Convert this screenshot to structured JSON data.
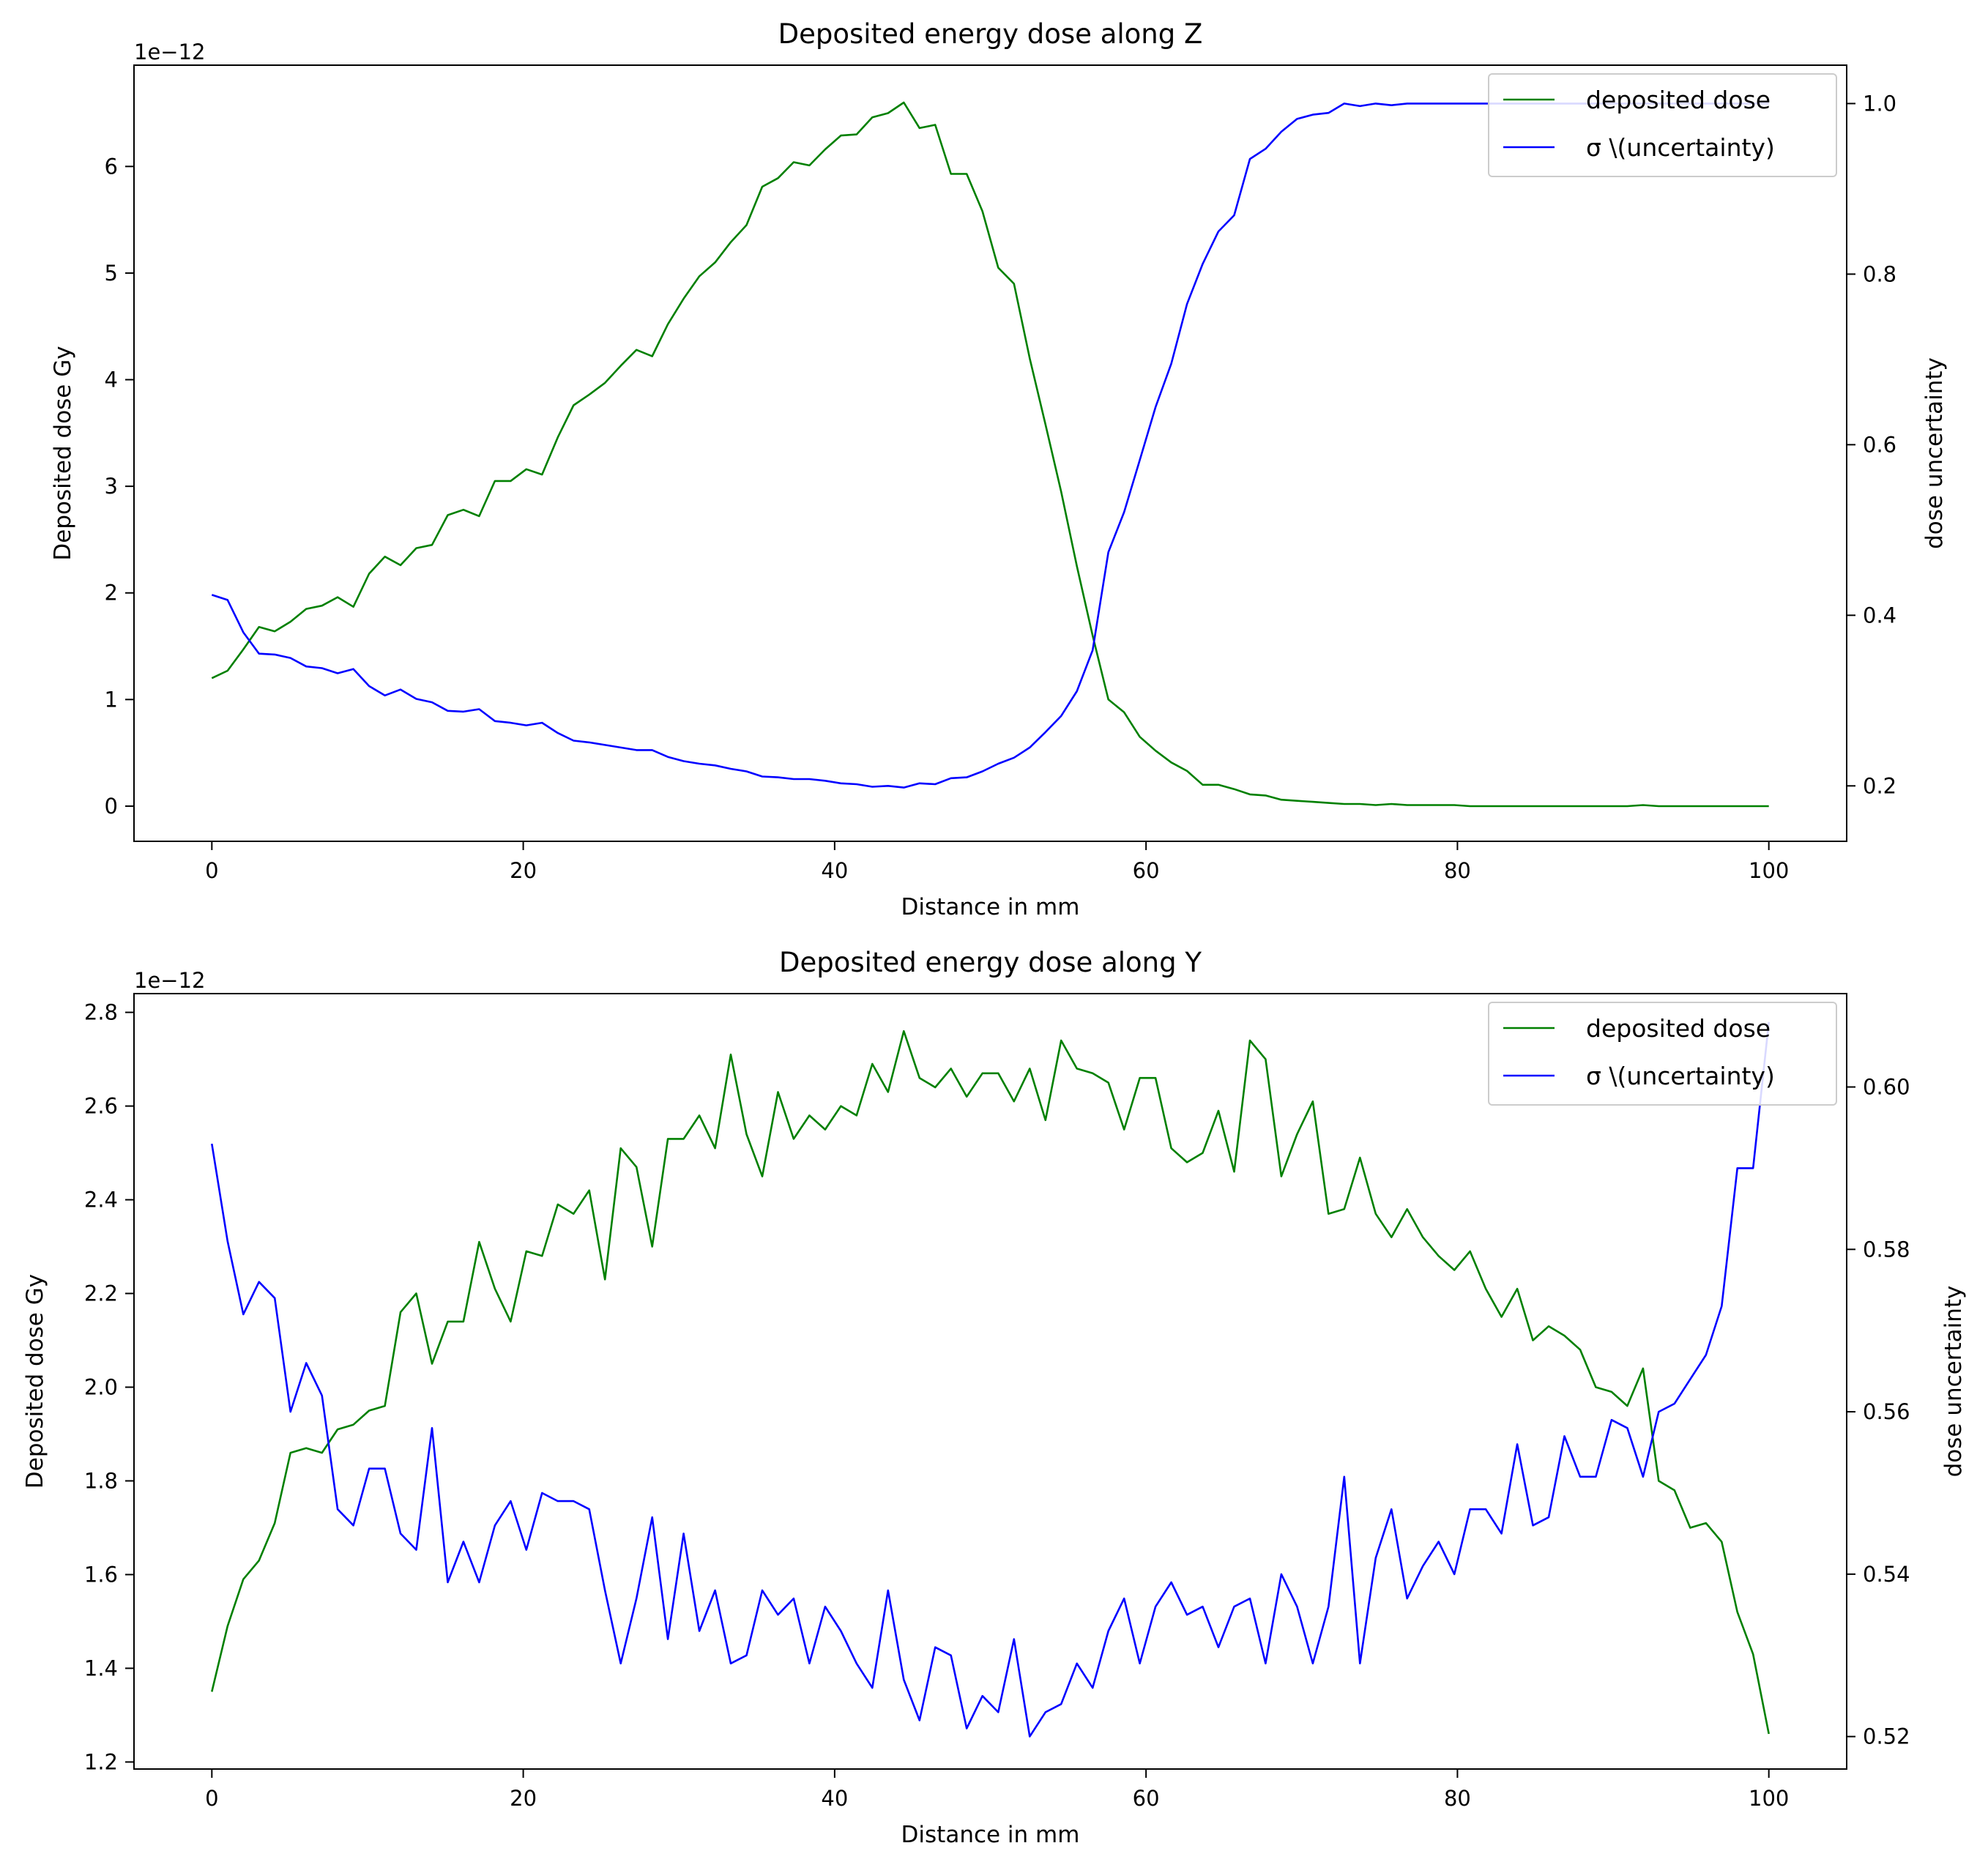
{
  "chart_data": [
    {
      "type": "line",
      "title": "Deposited energy dose along Z",
      "xlabel": "Distance in mm",
      "ylabel": "Deposited dose Gy",
      "y2label": "dose uncertainty",
      "y_offset_label": "1e−12",
      "xlim": [
        -5,
        105
      ],
      "ylim": [
        -0.33,
        6.95
      ],
      "y2lim": [
        0.135,
        1.045
      ],
      "x_ticks": [
        0,
        20,
        40,
        60,
        80,
        100
      ],
      "y_ticks": [
        0,
        1,
        2,
        3,
        4,
        5,
        6
      ],
      "y2_ticks": [
        0.2,
        0.4,
        0.6,
        0.8,
        1.0
      ],
      "y2_tick_labels": [
        "0.2",
        "0.4",
        "0.6",
        "0.8",
        "1.0"
      ],
      "grid": false,
      "legend_position": "top-right",
      "series": [
        {
          "name": "deposited dose",
          "axis": "left",
          "color": "#008000",
          "x": [
            0,
            1.01,
            2.02,
            3.03,
            4.04,
            5.05,
            6.06,
            7.07,
            8.08,
            9.09,
            10.1,
            11.11,
            12.12,
            13.13,
            14.14,
            15.15,
            16.16,
            17.17,
            18.18,
            19.19,
            20.2,
            21.21,
            22.22,
            23.23,
            24.24,
            25.25,
            26.26,
            27.27,
            28.28,
            29.29,
            30.3,
            31.31,
            32.32,
            33.33,
            34.34,
            35.35,
            36.36,
            37.37,
            38.38,
            39.39,
            40.4,
            41.41,
            42.42,
            43.43,
            44.44,
            45.45,
            46.46,
            47.47,
            48.48,
            49.49,
            50.51,
            51.52,
            52.53,
            53.54,
            54.55,
            55.56,
            56.57,
            57.58,
            58.59,
            59.6,
            60.61,
            61.62,
            62.63,
            63.64,
            64.65,
            65.66,
            66.67,
            67.68,
            68.69,
            69.7,
            70.71,
            71.72,
            72.73,
            73.74,
            74.75,
            75.76,
            76.77,
            77.78,
            78.79,
            79.8,
            80.81,
            81.82,
            82.83,
            83.84,
            84.85,
            85.86,
            86.87,
            87.88,
            88.89,
            89.9,
            90.91,
            91.92,
            92.93,
            93.94,
            94.95,
            95.96,
            96.97,
            97.98,
            98.99,
            100
          ],
          "y": [
            1.2,
            1.27,
            1.47,
            1.68,
            1.64,
            1.73,
            1.85,
            1.88,
            1.96,
            1.87,
            2.18,
            2.34,
            2.26,
            2.42,
            2.45,
            2.73,
            2.78,
            2.72,
            3.05,
            3.05,
            3.16,
            3.11,
            3.46,
            3.76,
            3.86,
            3.97,
            4.13,
            4.28,
            4.22,
            4.52,
            4.76,
            4.97,
            5.1,
            5.29,
            5.45,
            5.81,
            5.89,
            6.04,
            6.01,
            6.16,
            6.29,
            6.3,
            6.46,
            6.5,
            6.6,
            6.36,
            6.39,
            5.93,
            5.93,
            5.58,
            5.05,
            4.9,
            4.2,
            3.58,
            2.95,
            2.25,
            1.6,
            1.0,
            0.88,
            0.65,
            0.52,
            0.41,
            0.33,
            0.2,
            0.2,
            0.16,
            0.11,
            0.1,
            0.06,
            0.05,
            0.04,
            0.03,
            0.02,
            0.02,
            0.01,
            0.02,
            0.01,
            0.01,
            0.01,
            0.01,
            0.0,
            0.0,
            0.0,
            0.0,
            0.0,
            0.0,
            0.0,
            0.0,
            0.0,
            0.0,
            0.0,
            0.01,
            0.0,
            0.0,
            0.0,
            0.0,
            0.0,
            0.0,
            0.0,
            0.0
          ]
        },
        {
          "name": "σ \\(uncertainty)",
          "axis": "right",
          "color": "#0000ff",
          "x": [
            0,
            1.01,
            2.02,
            3.03,
            4.04,
            5.05,
            6.06,
            7.07,
            8.08,
            9.09,
            10.1,
            11.11,
            12.12,
            13.13,
            14.14,
            15.15,
            16.16,
            17.17,
            18.18,
            19.19,
            20.2,
            21.21,
            22.22,
            23.23,
            24.24,
            25.25,
            26.26,
            27.27,
            28.28,
            29.29,
            30.3,
            31.31,
            32.32,
            33.33,
            34.34,
            35.35,
            36.36,
            37.37,
            38.38,
            39.39,
            40.4,
            41.41,
            42.42,
            43.43,
            44.44,
            45.45,
            46.46,
            47.47,
            48.48,
            49.49,
            50.51,
            51.52,
            52.53,
            53.54,
            54.55,
            55.56,
            56.57,
            57.58,
            58.59,
            59.6,
            60.61,
            61.62,
            62.63,
            63.64,
            64.65,
            65.66,
            66.67,
            67.68,
            68.69,
            69.7,
            70.71,
            71.72,
            72.73,
            73.74,
            74.75,
            75.76,
            76.77,
            77.78,
            78.79,
            79.8,
            80.81,
            81.82,
            82.83,
            83.84,
            84.85,
            85.86,
            86.87,
            87.88,
            88.89,
            89.9,
            90.91,
            91.92,
            92.93,
            93.94,
            94.95,
            95.96,
            96.97,
            97.98,
            98.99,
            100
          ],
          "y": [
            0.424,
            0.418,
            0.38,
            0.355,
            0.354,
            0.35,
            0.34,
            0.338,
            0.332,
            0.337,
            0.317,
            0.306,
            0.313,
            0.302,
            0.298,
            0.288,
            0.287,
            0.29,
            0.276,
            0.274,
            0.271,
            0.274,
            0.262,
            0.253,
            0.251,
            0.248,
            0.245,
            0.242,
            0.242,
            0.234,
            0.229,
            0.226,
            0.224,
            0.22,
            0.217,
            0.211,
            0.21,
            0.208,
            0.208,
            0.206,
            0.203,
            0.202,
            0.199,
            0.2,
            0.198,
            0.203,
            0.202,
            0.209,
            0.21,
            0.217,
            0.226,
            0.233,
            0.245,
            0.263,
            0.282,
            0.311,
            0.359,
            0.474,
            0.521,
            0.582,
            0.644,
            0.695,
            0.765,
            0.812,
            0.85,
            0.869,
            0.935,
            0.947,
            0.967,
            0.982,
            0.987,
            0.989,
            1.0,
            0.997,
            1.0,
            0.998,
            1.0,
            1.0,
            1.0,
            1.0,
            1.0,
            1.0,
            1.0,
            1.0,
            1.0,
            1.0,
            1.0,
            1.0,
            1.0,
            1.0,
            1.0,
            1.0,
            1.0,
            1.0,
            1.0,
            1.0,
            1.0,
            1.0,
            1.0,
            1.0
          ]
        }
      ]
    },
    {
      "type": "line",
      "title": "Deposited energy dose along Y",
      "xlabel": "Distance in mm",
      "ylabel": "Deposited dose Gy",
      "y2label": "dose uncertainty",
      "y_offset_label": "1e−12",
      "xlim": [
        -5,
        105
      ],
      "ylim": [
        1.185,
        2.84
      ],
      "y2lim": [
        0.516,
        0.6115
      ],
      "x_ticks": [
        0,
        20,
        40,
        60,
        80,
        100
      ],
      "y_ticks": [
        1.2,
        1.4,
        1.6,
        1.8,
        2.0,
        2.2,
        2.4,
        2.6,
        2.8
      ],
      "y2_ticks": [
        0.52,
        0.54,
        0.56,
        0.58,
        0.6
      ],
      "y2_tick_labels": [
        "0.52",
        "0.54",
        "0.56",
        "0.58",
        "0.60"
      ],
      "grid": false,
      "legend_position": "top-right",
      "series": [
        {
          "name": "deposited dose",
          "axis": "left",
          "color": "#008000",
          "x": [
            0,
            1.01,
            2.02,
            3.03,
            4.04,
            5.05,
            6.06,
            7.07,
            8.08,
            9.09,
            10.1,
            11.11,
            12.12,
            13.13,
            14.14,
            15.15,
            16.16,
            17.17,
            18.18,
            19.19,
            20.2,
            21.21,
            22.22,
            23.23,
            24.24,
            25.25,
            26.26,
            27.27,
            28.28,
            29.29,
            30.3,
            31.31,
            32.32,
            33.33,
            34.34,
            35.35,
            36.36,
            37.37,
            38.38,
            39.39,
            40.4,
            41.41,
            42.42,
            43.43,
            44.44,
            45.45,
            46.46,
            47.47,
            48.48,
            49.49,
            50.51,
            51.52,
            52.53,
            53.54,
            54.55,
            55.56,
            56.57,
            57.58,
            58.59,
            59.6,
            60.61,
            61.62,
            62.63,
            63.64,
            64.65,
            65.66,
            66.67,
            67.68,
            68.69,
            69.7,
            70.71,
            71.72,
            72.73,
            73.74,
            74.75,
            75.76,
            76.77,
            77.78,
            78.79,
            79.8,
            80.81,
            81.82,
            82.83,
            83.84,
            84.85,
            85.86,
            86.87,
            87.88,
            88.89,
            89.9,
            90.91,
            91.92,
            92.93,
            93.94,
            94.95,
            95.96,
            96.97,
            97.98,
            98.99,
            100
          ],
          "y": [
            1.35,
            1.49,
            1.59,
            1.63,
            1.71,
            1.86,
            1.87,
            1.86,
            1.91,
            1.92,
            1.95,
            1.96,
            2.16,
            2.2,
            2.05,
            2.14,
            2.14,
            2.31,
            2.21,
            2.14,
            2.29,
            2.28,
            2.39,
            2.37,
            2.42,
            2.23,
            2.51,
            2.47,
            2.3,
            2.53,
            2.53,
            2.58,
            2.51,
            2.71,
            2.54,
            2.45,
            2.63,
            2.53,
            2.58,
            2.55,
            2.6,
            2.58,
            2.69,
            2.63,
            2.76,
            2.66,
            2.64,
            2.68,
            2.62,
            2.67,
            2.67,
            2.61,
            2.68,
            2.57,
            2.74,
            2.68,
            2.67,
            2.65,
            2.55,
            2.66,
            2.66,
            2.51,
            2.48,
            2.5,
            2.59,
            2.46,
            2.74,
            2.7,
            2.45,
            2.54,
            2.61,
            2.37,
            2.38,
            2.49,
            2.37,
            2.32,
            2.38,
            2.32,
            2.28,
            2.25,
            2.29,
            2.21,
            2.15,
            2.21,
            2.1,
            2.13,
            2.11,
            2.08,
            2.0,
            1.99,
            1.96,
            2.04,
            1.8,
            1.78,
            1.7,
            1.71,
            1.67,
            1.52,
            1.43,
            1.26
          ]
        },
        {
          "name": "σ \\(uncertainty)",
          "axis": "right",
          "color": "#0000ff",
          "x": [
            0,
            1.01,
            2.02,
            3.03,
            4.04,
            5.05,
            6.06,
            7.07,
            8.08,
            9.09,
            10.1,
            11.11,
            12.12,
            13.13,
            14.14,
            15.15,
            16.16,
            17.17,
            18.18,
            19.19,
            20.2,
            21.21,
            22.22,
            23.23,
            24.24,
            25.25,
            26.26,
            27.27,
            28.28,
            29.29,
            30.3,
            31.31,
            32.32,
            33.33,
            34.34,
            35.35,
            36.36,
            37.37,
            38.38,
            39.39,
            40.4,
            41.41,
            42.42,
            43.43,
            44.44,
            45.45,
            46.46,
            47.47,
            48.48,
            49.49,
            50.51,
            51.52,
            52.53,
            53.54,
            54.55,
            55.56,
            56.57,
            57.58,
            58.59,
            59.6,
            60.61,
            61.62,
            62.63,
            63.64,
            64.65,
            65.66,
            66.67,
            67.68,
            68.69,
            69.7,
            70.71,
            71.72,
            72.73,
            73.74,
            74.75,
            75.76,
            76.77,
            77.78,
            78.79,
            79.8,
            80.81,
            81.82,
            82.83,
            83.84,
            84.85,
            85.86,
            86.87,
            87.88,
            88.89,
            89.9,
            90.91,
            91.92,
            92.93,
            93.94,
            94.95,
            95.96,
            96.97,
            97.98,
            98.99,
            100
          ],
          "y": [
            0.593,
            0.581,
            0.572,
            0.576,
            0.574,
            0.56,
            0.566,
            0.562,
            0.548,
            0.546,
            0.553,
            0.553,
            0.545,
            0.543,
            0.558,
            0.539,
            0.544,
            0.539,
            0.546,
            0.549,
            0.543,
            0.55,
            0.549,
            0.549,
            0.548,
            0.538,
            0.529,
            0.537,
            0.547,
            0.532,
            0.545,
            0.533,
            0.538,
            0.529,
            0.53,
            0.538,
            0.535,
            0.537,
            0.529,
            0.536,
            0.533,
            0.529,
            0.526,
            0.538,
            0.527,
            0.522,
            0.531,
            0.53,
            0.521,
            0.525,
            0.523,
            0.532,
            0.52,
            0.523,
            0.524,
            0.529,
            0.526,
            0.533,
            0.537,
            0.529,
            0.536,
            0.539,
            0.535,
            0.536,
            0.531,
            0.536,
            0.537,
            0.529,
            0.54,
            0.536,
            0.529,
            0.536,
            0.552,
            0.529,
            0.542,
            0.548,
            0.537,
            0.541,
            0.544,
            0.54,
            0.548,
            0.548,
            0.545,
            0.556,
            0.546,
            0.547,
            0.557,
            0.552,
            0.552,
            0.559,
            0.558,
            0.552,
            0.56,
            0.561,
            0.564,
            0.567,
            0.573,
            0.59,
            0.59,
            0.608
          ]
        }
      ]
    }
  ]
}
